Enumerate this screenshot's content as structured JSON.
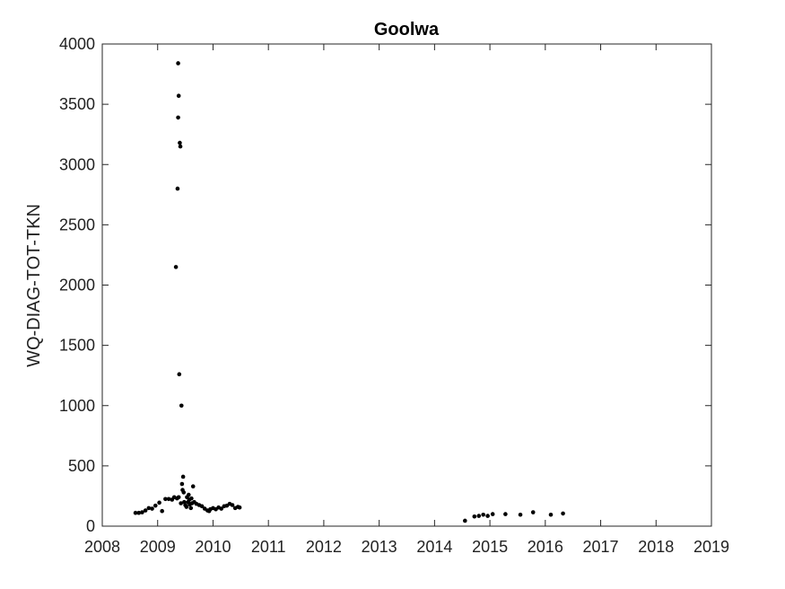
{
  "chart_data": {
    "type": "scatter",
    "title": "Goolwa",
    "xlabel": "",
    "ylabel": "WQ-DIAG-TOT-TKN",
    "xlim": [
      2008,
      2019
    ],
    "ylim": [
      0,
      4000
    ],
    "x_ticks": [
      "2008",
      "2009",
      "2010",
      "2011",
      "2012",
      "2013",
      "2014",
      "2015",
      "2016",
      "2017",
      "2018",
      "2019"
    ],
    "y_ticks": [
      "0",
      "500",
      "1000",
      "1500",
      "2000",
      "2500",
      "3000",
      "3500",
      "4000"
    ],
    "grid": false,
    "marker_color": "#000000",
    "series": [
      {
        "points": [
          [
            2008.6,
            110
          ],
          [
            2008.66,
            110
          ],
          [
            2008.72,
            115
          ],
          [
            2008.78,
            130
          ],
          [
            2008.84,
            150
          ],
          [
            2008.9,
            145
          ],
          [
            2008.96,
            170
          ],
          [
            2009.03,
            195
          ],
          [
            2009.08,
            125
          ],
          [
            2009.14,
            225
          ],
          [
            2009.2,
            225
          ],
          [
            2009.26,
            220
          ],
          [
            2009.3,
            240
          ],
          [
            2009.33,
            2150
          ],
          [
            2009.35,
            230
          ],
          [
            2009.36,
            2800
          ],
          [
            2009.37,
            3840
          ],
          [
            2009.37,
            3390
          ],
          [
            2009.38,
            3570
          ],
          [
            2009.38,
            240
          ],
          [
            2009.39,
            1260
          ],
          [
            2009.4,
            3180
          ],
          [
            2009.41,
            3150
          ],
          [
            2009.42,
            190
          ],
          [
            2009.43,
            1000
          ],
          [
            2009.44,
            350
          ],
          [
            2009.45,
            300
          ],
          [
            2009.46,
            410
          ],
          [
            2009.47,
            280
          ],
          [
            2009.48,
            200
          ],
          [
            2009.5,
            175
          ],
          [
            2009.52,
            160
          ],
          [
            2009.53,
            240
          ],
          [
            2009.55,
            200
          ],
          [
            2009.56,
            260
          ],
          [
            2009.57,
            220
          ],
          [
            2009.58,
            180
          ],
          [
            2009.6,
            150
          ],
          [
            2009.61,
            230
          ],
          [
            2009.62,
            190
          ],
          [
            2009.64,
            330
          ],
          [
            2009.66,
            200
          ],
          [
            2009.7,
            185
          ],
          [
            2009.75,
            175
          ],
          [
            2009.8,
            165
          ],
          [
            2009.85,
            145
          ],
          [
            2009.9,
            130
          ],
          [
            2009.93,
            125
          ],
          [
            2009.95,
            140
          ],
          [
            2010.0,
            150
          ],
          [
            2010.05,
            140
          ],
          [
            2010.1,
            155
          ],
          [
            2010.15,
            145
          ],
          [
            2010.2,
            165
          ],
          [
            2010.25,
            170
          ],
          [
            2010.3,
            185
          ],
          [
            2010.35,
            175
          ],
          [
            2010.4,
            150
          ],
          [
            2010.45,
            160
          ],
          [
            2010.48,
            155
          ],
          [
            2014.55,
            45
          ],
          [
            2014.72,
            80
          ],
          [
            2014.8,
            85
          ],
          [
            2014.88,
            95
          ],
          [
            2014.96,
            85
          ],
          [
            2015.05,
            100
          ],
          [
            2015.28,
            100
          ],
          [
            2015.55,
            95
          ],
          [
            2015.78,
            115
          ],
          [
            2016.1,
            95
          ],
          [
            2016.32,
            105
          ]
        ]
      }
    ]
  }
}
